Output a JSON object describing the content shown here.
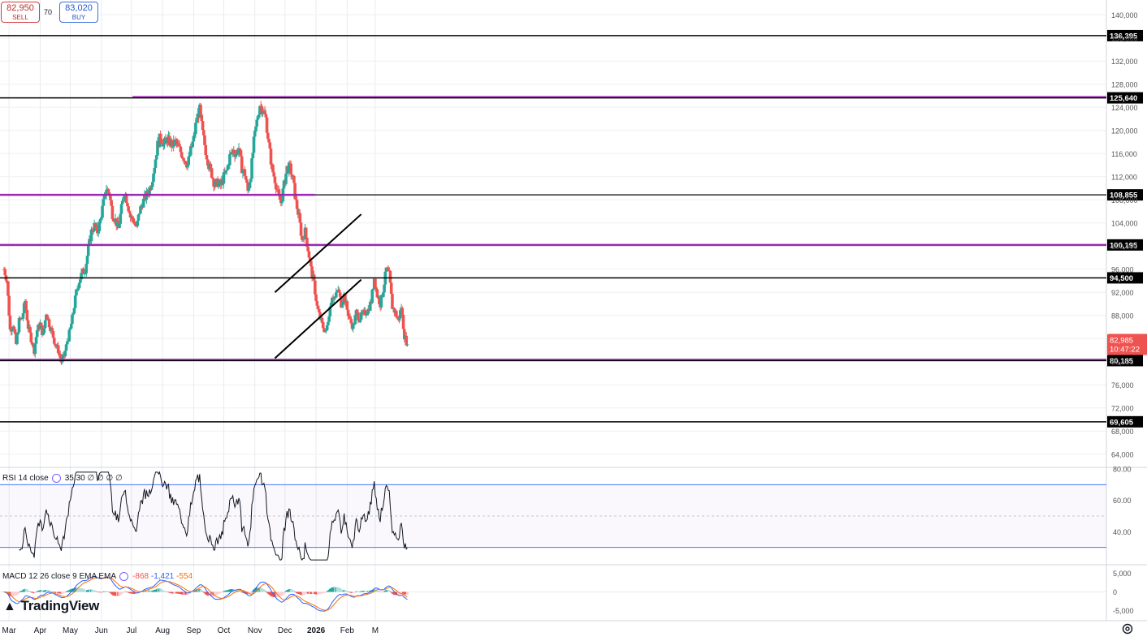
{
  "trade": {
    "sell_price": "82,950",
    "sell_label": "SELL",
    "buy_price": "83,020",
    "buy_label": "BUY",
    "spread": "70"
  },
  "logo": "TradingView",
  "colors": {
    "up": "#26a69a",
    "down": "#ef5350",
    "level_black": "#000000",
    "level_purple": "#9c27b0",
    "rsi_band": "#2962ff",
    "macd_line": "#2962ff",
    "signal_line": "#ff6d00"
  },
  "chart_data": [
    {
      "type": "candlestick",
      "symbol_timeframe": "daily",
      "price_axis_ticks": [
        140000,
        136000,
        132000,
        128000,
        124000,
        120000,
        116000,
        112000,
        108000,
        104000,
        100000,
        96000,
        92000,
        88000,
        84000,
        80000,
        76000,
        72000,
        68000,
        64000
      ],
      "price_axis_tick_labels": [
        "140,000",
        "136,000",
        "132,000",
        "128,000",
        "124,000",
        "120,000",
        "116,000",
        "112,000",
        "108,000",
        "104,000",
        "100,000",
        "96,000",
        "92,000",
        "88,000",
        "84,000",
        "80,000",
        "76,000",
        "72,000",
        "68,000",
        "64,000"
      ],
      "ylim": [
        62000,
        142000
      ],
      "time_axis_labels": [
        "Mar",
        "Apr",
        "May",
        "Jun",
        "Jul",
        "Aug",
        "Sep",
        "Oct",
        "Nov",
        "Dec",
        "2026",
        "Feb",
        "M"
      ],
      "current_price": {
        "value": "82,985",
        "countdown": "10:47:22"
      },
      "horizontal_levels": [
        {
          "value": 136395,
          "label": "136,395",
          "color": "black"
        },
        {
          "value": 125640,
          "label": "125,640",
          "color": "black",
          "overlay": "purple"
        },
        {
          "value": 108855,
          "label": "108,855",
          "color": "purple"
        },
        {
          "value": 100195,
          "label": "100,195",
          "color": "purple"
        },
        {
          "value": 94500,
          "label": "94,500",
          "color": "black"
        },
        {
          "value": 80185,
          "label": "80,185",
          "color": "black",
          "overlay": "purple"
        },
        {
          "value": 69605,
          "label": "69,605",
          "color": "black"
        }
      ],
      "trend_channel": {
        "description": "rising channel drawn from late Nov to mid Feb",
        "upper": [
          {
            "date": "2025-11-21",
            "price": 92000
          },
          {
            "date": "2026-02-15",
            "price": 105500
          }
        ],
        "lower": [
          {
            "date": "2025-11-21",
            "price": 80600
          },
          {
            "date": "2026-02-15",
            "price": 94200
          }
        ]
      },
      "closes": [
        [
          0,
          96000
        ],
        [
          3,
          94000
        ],
        [
          6,
          85500
        ],
        [
          9,
          86500
        ],
        [
          12,
          83000
        ],
        [
          15,
          87000
        ],
        [
          18,
          87500
        ],
        [
          21,
          90500
        ],
        [
          24,
          86000
        ],
        [
          27,
          84000
        ],
        [
          30,
          82000
        ],
        [
          33,
          85500
        ],
        [
          36,
          86500
        ],
        [
          39,
          84500
        ],
        [
          42,
          88500
        ],
        [
          45,
          86500
        ],
        [
          48,
          85000
        ],
        [
          51,
          83000
        ],
        [
          54,
          82000
        ],
        [
          57,
          80000
        ],
        [
          60,
          81000
        ],
        [
          63,
          83500
        ],
        [
          66,
          85500
        ],
        [
          69,
          88500
        ],
        [
          72,
          92000
        ],
        [
          75,
          94000
        ],
        [
          78,
          95500
        ],
        [
          81,
          96000
        ],
        [
          84,
          99500
        ],
        [
          87,
          102500
        ],
        [
          90,
          103500
        ],
        [
          93,
          102500
        ],
        [
          96,
          104500
        ],
        [
          99,
          107500
        ],
        [
          102,
          110000
        ],
        [
          105,
          109000
        ],
        [
          108,
          105500
        ],
        [
          111,
          104500
        ],
        [
          114,
          103000
        ],
        [
          117,
          106500
        ],
        [
          120,
          109500
        ],
        [
          123,
          107500
        ],
        [
          126,
          105000
        ],
        [
          129,
          104500
        ],
        [
          132,
          103000
        ],
        [
          135,
          106000
        ],
        [
          138,
          107500
        ],
        [
          141,
          108500
        ],
        [
          144,
          109500
        ],
        [
          147,
          111000
        ],
        [
          150,
          114000
        ],
        [
          153,
          117500
        ],
        [
          156,
          119000
        ],
        [
          159,
          117500
        ],
        [
          162,
          118500
        ],
        [
          165,
          118000
        ],
        [
          168,
          117500
        ],
        [
          171,
          118000
        ],
        [
          174,
          117000
        ],
        [
          177,
          116000
        ],
        [
          180,
          115000
        ],
        [
          183,
          114000
        ],
        [
          186,
          116500
        ],
        [
          189,
          118500
        ],
        [
          192,
          122000
        ],
        [
          195,
          123500
        ],
        [
          198,
          119500
        ],
        [
          201,
          116500
        ],
        [
          204,
          114000
        ],
        [
          207,
          112500
        ],
        [
          210,
          110500
        ],
        [
          213,
          111000
        ],
        [
          216,
          110500
        ],
        [
          219,
          112000
        ],
        [
          222,
          113000
        ],
        [
          225,
          115500
        ],
        [
          228,
          116500
        ],
        [
          231,
          116000
        ],
        [
          234,
          117000
        ],
        [
          237,
          113500
        ],
        [
          240,
          112500
        ],
        [
          243,
          109500
        ],
        [
          246,
          112500
        ],
        [
          249,
          118000
        ],
        [
          252,
          121500
        ],
        [
          255,
          124500
        ],
        [
          258,
          123500
        ],
        [
          261,
          122000
        ],
        [
          264,
          117500
        ],
        [
          267,
          113500
        ],
        [
          270,
          111500
        ],
        [
          273,
          109000
        ],
        [
          276,
          107500
        ],
        [
          279,
          110500
        ],
        [
          282,
          113500
        ],
        [
          285,
          113500
        ],
        [
          288,
          111500
        ],
        [
          291,
          107500
        ],
        [
          294,
          105000
        ],
        [
          297,
          101000
        ],
        [
          300,
          102500
        ],
        [
          303,
          99500
        ],
        [
          306,
          96000
        ],
        [
          309,
          93500
        ],
        [
          312,
          89500
        ],
        [
          315,
          87500
        ],
        [
          318,
          86000
        ],
        [
          321,
          85000
        ],
        [
          324,
          88500
        ],
        [
          327,
          91500
        ],
        [
          330,
          91000
        ],
        [
          333,
          92500
        ],
        [
          336,
          90000
        ],
        [
          339,
          91500
        ],
        [
          342,
          89000
        ],
        [
          345,
          87000
        ],
        [
          348,
          86000
        ],
        [
          351,
          88500
        ],
        [
          354,
          87500
        ],
        [
          357,
          88000
        ],
        [
          360,
          88500
        ],
        [
          363,
          89000
        ],
        [
          366,
          90500
        ],
        [
          369,
          94500
        ],
        [
          372,
          91500
        ],
        [
          375,
          90000
        ],
        [
          378,
          92500
        ],
        [
          381,
          96000
        ],
        [
          384,
          95000
        ],
        [
          387,
          89500
        ],
        [
          390,
          88500
        ],
        [
          393,
          87000
        ],
        [
          396,
          89500
        ],
        [
          399,
          84500
        ],
        [
          402,
          83000
        ]
      ]
    },
    {
      "type": "line",
      "name": "RSI 14 close",
      "legend": {
        "title": "RSI 14 close",
        "value": "35.30",
        "extras": [
          "∅",
          "∅",
          "∅",
          "∅"
        ]
      },
      "bands": [
        30,
        70
      ],
      "mid": 50,
      "axis_ticks": [
        "80.00",
        "60.00",
        "40.00"
      ],
      "ylim": [
        20,
        80
      ]
    },
    {
      "type": "line",
      "name": "MACD 12 26 close 9 EMA EMA",
      "legend": {
        "title": "MACD 12 26 close 9 EMA EMA",
        "histogram": "-868",
        "macd": "-1,421",
        "signal": "-554"
      },
      "axis_ticks": [
        "5,000",
        "0",
        "-5,000"
      ],
      "ylim": [
        -7000,
        7000
      ]
    }
  ]
}
